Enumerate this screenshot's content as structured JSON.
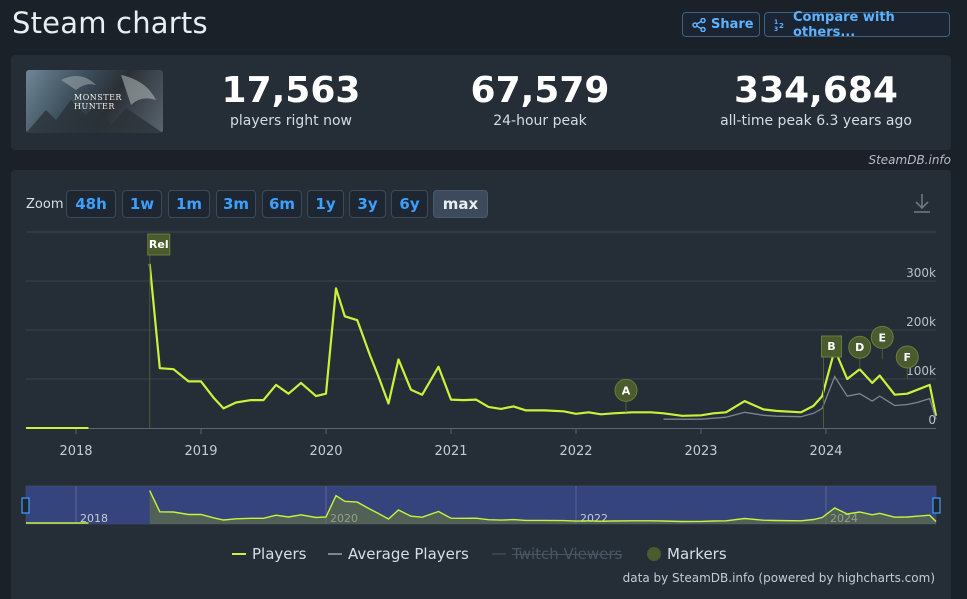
{
  "page": {
    "title": "Steam charts"
  },
  "header": {
    "share_label": "Share",
    "compare_label": "Compare with others..."
  },
  "stats": [
    {
      "value": "17,563",
      "label": "players right now"
    },
    {
      "value": "67,579",
      "label": "24-hour peak"
    },
    {
      "value": "334,684",
      "label": "all-time peak 6.3 years ago"
    }
  ],
  "game": {
    "cover_text": "MONSTER HUNTER"
  },
  "credit_top": "SteamDB.info",
  "zoom": {
    "label": "Zoom",
    "options": [
      "48h",
      "1w",
      "1m",
      "3m",
      "6m",
      "1y",
      "3y",
      "6y",
      "max"
    ],
    "active": "max"
  },
  "legend": {
    "players": "Players",
    "average": "Average Players",
    "twitch": "Twitch Viewers",
    "markers": "Markers"
  },
  "credit_bottom": "data by SteamDB.info (powered by highcharts.com)",
  "colors": {
    "players": "#c7f43a",
    "average": "#7d8590",
    "marker": "#4a5b2e",
    "navigator": "#3a4a8a"
  },
  "chart_data": {
    "type": "line",
    "x_unit": "year",
    "ylim": [
      0,
      300000
    ],
    "yticks": [
      "0",
      "100k",
      "200k",
      "300k"
    ],
    "xticks": [
      "2018",
      "2019",
      "2020",
      "2021",
      "2022",
      "2023",
      "2024"
    ],
    "navigator_ticks": [
      "2018",
      "2020",
      "2022",
      "2024"
    ],
    "series": [
      {
        "name": "Players",
        "x": [
          2017.6,
          2018.1,
          2018.59,
          2018.67,
          2018.78,
          2018.9,
          2019.0,
          2019.1,
          2019.18,
          2019.28,
          2019.4,
          2019.5,
          2019.6,
          2019.7,
          2019.8,
          2019.92,
          2020.0,
          2020.08,
          2020.15,
          2020.25,
          2020.35,
          2020.42,
          2020.5,
          2020.58,
          2020.68,
          2020.77,
          2020.9,
          2021.0,
          2021.1,
          2021.2,
          2021.3,
          2021.4,
          2021.5,
          2021.6,
          2021.75,
          2021.9,
          2022.0,
          2022.1,
          2022.2,
          2022.3,
          2022.45,
          2022.6,
          2022.7,
          2022.85,
          2023.0,
          2023.1,
          2023.2,
          2023.35,
          2023.5,
          2023.6,
          2023.8,
          2023.9,
          2023.97,
          2024.07,
          2024.17,
          2024.27,
          2024.37,
          2024.43,
          2024.55,
          2024.65,
          2024.73,
          2024.83,
          2024.88
        ],
        "y": [
          0,
          0,
          335000,
          122000,
          120000,
          95000,
          95000,
          62000,
          40000,
          52000,
          57000,
          57000,
          88000,
          70000,
          92000,
          65000,
          70000,
          285000,
          228000,
          220000,
          150000,
          105000,
          50000,
          140000,
          78000,
          68000,
          125000,
          58000,
          57000,
          58000,
          43000,
          39000,
          44000,
          36000,
          36000,
          34000,
          29000,
          32000,
          28000,
          30000,
          32000,
          32000,
          30000,
          25000,
          26000,
          30000,
          32000,
          55000,
          38000,
          35000,
          32000,
          45000,
          65000,
          160000,
          100000,
          120000,
          92000,
          107000,
          68000,
          70000,
          78000,
          88000,
          25000
        ]
      },
      {
        "name": "Average Players",
        "x": [
          2022.7,
          2022.85,
          2023.0,
          2023.1,
          2023.2,
          2023.35,
          2023.5,
          2023.6,
          2023.8,
          2023.9,
          2023.97,
          2024.07,
          2024.17,
          2024.27,
          2024.37,
          2024.43,
          2024.55,
          2024.65,
          2024.73,
          2024.83,
          2024.88
        ],
        "y": [
          18000,
          18000,
          18000,
          20000,
          22000,
          32000,
          26000,
          24000,
          23000,
          30000,
          40000,
          105000,
          65000,
          70000,
          55000,
          65000,
          46000,
          48000,
          52000,
          60000,
          18000
        ]
      }
    ],
    "markers": [
      {
        "label": "Rel",
        "x": 2018.59,
        "style": "flag"
      },
      {
        "label": "A",
        "x": 2022.4,
        "y": 32000,
        "style": "circle"
      },
      {
        "label": "B",
        "x": 2023.98,
        "style": "flag"
      },
      {
        "label": "D",
        "x": 2024.27,
        "y": 120000,
        "style": "circle"
      },
      {
        "label": "E",
        "x": 2024.45,
        "y": 140000,
        "style": "circle"
      },
      {
        "label": "F",
        "x": 2024.65,
        "y": 100000,
        "style": "circle"
      }
    ]
  }
}
